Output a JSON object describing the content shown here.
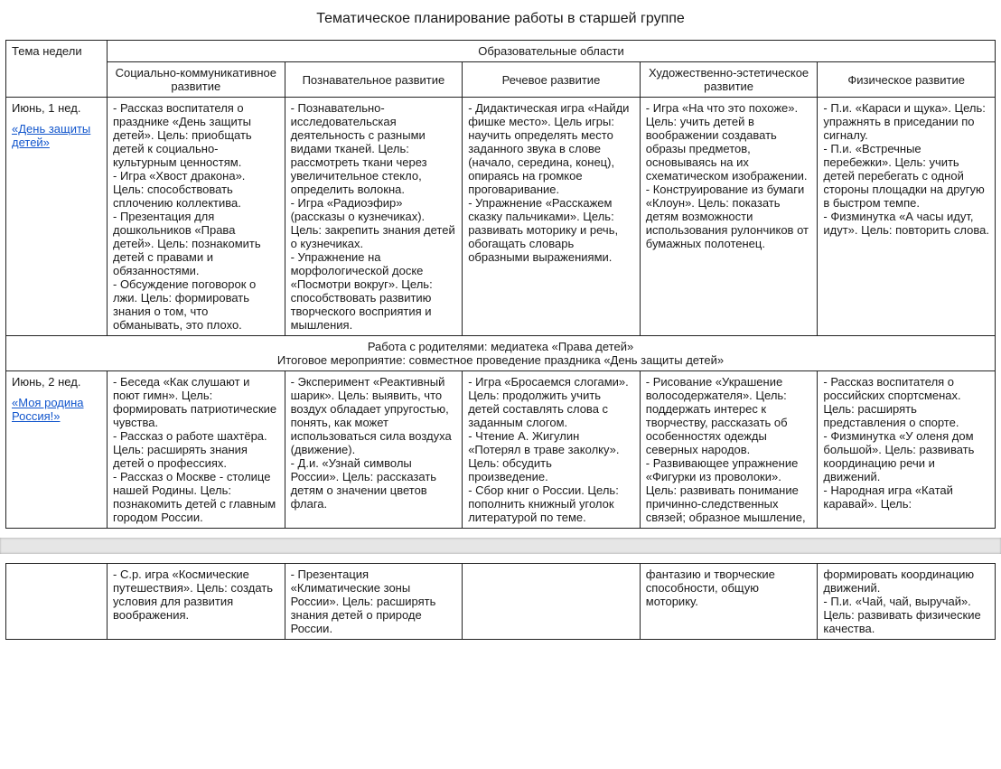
{
  "title": "Тематическое планирование работы в старшей группе",
  "header": {
    "theme": "Тема недели",
    "areas_group": "Образовательные области",
    "areas": [
      "Социально-коммуникативное развитие",
      "Познавательное развитие",
      "Речевое развитие",
      "Художественно-эстетическое развитие",
      "Физическое развитие"
    ]
  },
  "weeks": [
    {
      "month_line": "Июнь, 1 нед.",
      "theme_title": "«День защиты детей»",
      "cells": [
        "- Рассказ воспитателя о празднике «День защиты детей». Цель: приобщать детей к социально-культурным ценностям.\n- Игра «Хвост дракона». Цель: способствовать сплочению коллектива.\n- Презентация для дошкольников «Права детей». Цель: познакомить детей с правами и обязанностями.\n- Обсуждение поговорок о лжи. Цель: формировать знания о том, что обманывать, это плохо.",
        "- Познавательно-исследовательская деятельность с разными видами тканей. Цель: рассмотреть ткани через увеличительное стекло, определить волокна.\n- Игра «Радиоэфир» (рассказы о кузнечиках). Цель: закрепить знания детей о кузнечиках.\n- Упражнение на морфологической доске «Посмотри вокруг». Цель: способствовать развитию творческого восприятия и мышления.",
        "- Дидактическая игра «Найди фишке место». Цель игры: научить определять место заданного звука в слове (начало, середина, конец), опираясь на громкое проговаривание.\n- Упражнение «Расскажем сказку пальчиками». Цель: развивать моторику и речь, обогащать словарь образными выражениями.",
        "- Игра «На что это похоже». Цель: учить детей в воображении создавать образы предметов, основываясь на их схематическом изображении.\n- Конструирование из бумаги «Клоун». Цель: показать детям возможности использования рулончиков от бумажных полотенец.",
        "- П.и. «Караси и щука». Цель: упражнять в приседании по сигналу.\n- П.и. «Встречные перебежки». Цель: учить детей перебегать с одной стороны площадки на другую в быстром темпе.\n- Физминутка «А часы идут, идут». Цель: повторить слова."
      ],
      "parents": "Работа с родителями: медиатека «Права детей»\nИтоговое мероприятие: совместное проведение праздника «День защиты детей»"
    },
    {
      "month_line": "Июнь, 2 нед.",
      "theme_title": "«Моя родина Россия!»",
      "cells": [
        "- Беседа «Как слушают и поют гимн». Цель: формировать патриотические чувства.\n- Рассказ о работе шахтёра. Цель: расширять знания детей о профессиях.\n- Рассказ о Москве - столице нашей Родины. Цель: познакомить детей с главным городом России.",
        "- Эксперимент «Реактивный шарик». Цель: выявить, что воздух обладает упругостью, понять, как может использоваться сила воздуха (движение).\n- Д.и. «Узнай символы России». Цель: рассказать детям о значении цветов флага.",
        "- Игра «Бросаемся слогами». Цель: продолжить учить детей составлять слова с заданным слогом.\n- Чтение А. Жигулин «Потерял в траве заколку». Цель: обсудить произведение.\n- Сбор книг о России. Цель: пополнить книжный уголок литературой по теме.",
        "- Рисование «Украшение волосодержателя». Цель: поддержать интерес к творчеству, рассказать об особенностях одежды северных народов.\n- Развивающее упражнение «Фигурки из проволоки». Цель: развивать понимание причинно-следственных связей; образное мышление,",
        "- Рассказ воспитателя о российских спортсменах. Цель: расширять представления о спорте.\n- Физминутка «У оленя дом большой». Цель: развивать координацию речи и движений.\n- Народная игра «Катай каравай». Цель:"
      ]
    }
  ],
  "continuation": {
    "cells": [
      "- С.р. игра «Космические путешествия». Цель: создать условия для развития воображения.",
      "- Презентация «Климатические зоны России». Цель: расширять знания детей о природе России.",
      "",
      "фантазию и творческие способности, общую моторику.",
      "формировать координацию движений.\n- П.и. «Чай, чай, выручай». Цель: развивать физические качества."
    ]
  }
}
